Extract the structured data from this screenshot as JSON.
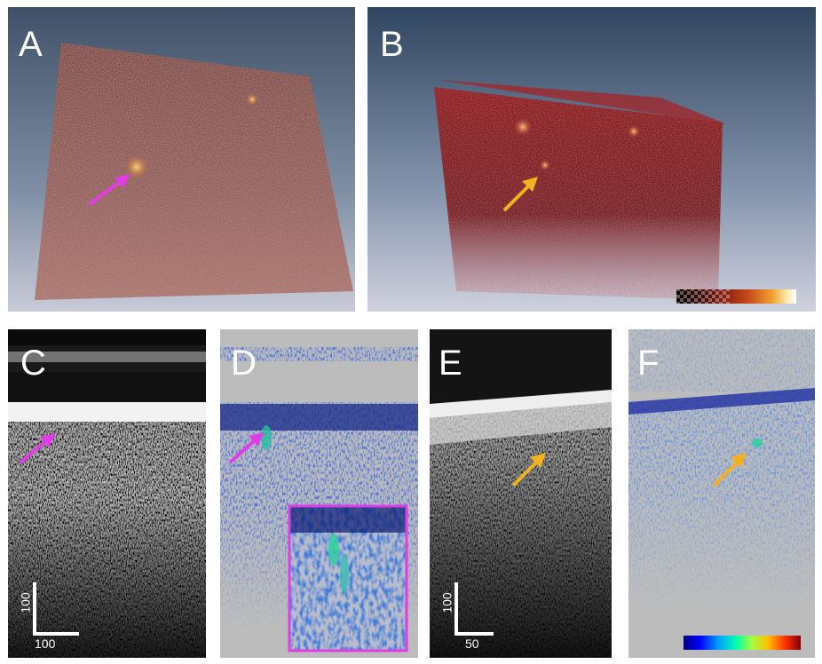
{
  "figure": {
    "panels": {
      "A": {
        "label": "A",
        "content": "3D volume rendering, top view",
        "arrow_color": "#e23ce6"
      },
      "B": {
        "label": "B",
        "content": "3D volume rendering, oblique view",
        "arrow_color": "#f2b21e"
      },
      "C": {
        "label": "C",
        "content": "grayscale cross-section",
        "arrow_color": "#e23ce6"
      },
      "D": {
        "label": "D",
        "content": "color-coded cross-section with inset",
        "arrow_color": "#e23ce6",
        "inset_border": "#e23ce6"
      },
      "E": {
        "label": "E",
        "content": "grayscale cross-section",
        "arrow_color": "#f2b21e"
      },
      "F": {
        "label": "F",
        "content": "color-coded cross-section",
        "arrow_color": "#f2b21e"
      }
    },
    "scalebars": {
      "C": {
        "vertical": "100",
        "horizontal": "100"
      },
      "E": {
        "vertical": "100",
        "horizontal": "50"
      }
    },
    "colormaps": {
      "hot": [
        "#000000",
        "#3a0a08",
        "#8a1d10",
        "#c84a1a",
        "#f0a030",
        "#ffe9a8",
        "#ffffff"
      ],
      "jet": [
        "#00007f",
        "#0000ff",
        "#00a0ff",
        "#00ffb0",
        "#a0ff40",
        "#ffc000",
        "#ff3000",
        "#7f0000"
      ]
    }
  }
}
